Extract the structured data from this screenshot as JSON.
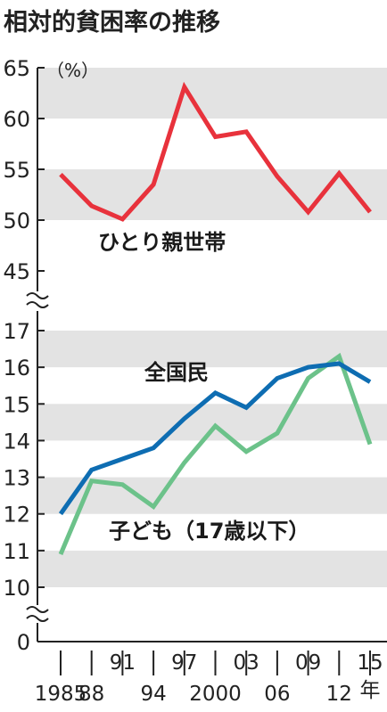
{
  "chart_data": {
    "type": "line",
    "title": "相対的貧困率の推移",
    "unit": "（%）",
    "x": [
      1985,
      1988,
      1991,
      1994,
      1997,
      2000,
      2003,
      2006,
      2009,
      2012,
      2015
    ],
    "x_tick_labels": {
      "upper": [
        "",
        "",
        "91",
        "",
        "97",
        "",
        "03",
        "",
        "09",
        "",
        "15"
      ],
      "lower": [
        "1985",
        "88",
        "",
        "94",
        "",
        "2000",
        "",
        "06",
        "",
        "12",
        ""
      ],
      "year_suffix": "年"
    },
    "upper_panel": {
      "ylim": [
        45,
        65
      ],
      "yticks": [
        "65",
        "60",
        "55",
        "50",
        "45"
      ],
      "series": [
        {
          "name": "ひとり親世帯",
          "color": "#e8323c",
          "values": [
            54.5,
            51.4,
            50.1,
            53.5,
            63.1,
            58.2,
            58.7,
            54.3,
            50.8,
            54.6,
            50.8
          ]
        }
      ]
    },
    "lower_panel": {
      "ylim": [
        10,
        17
      ],
      "yticks": [
        "17",
        "16",
        "15",
        "14",
        "13",
        "12",
        "11",
        "10"
      ],
      "series": [
        {
          "name": "全国民",
          "color": "#0e6db2",
          "values": [
            12.0,
            13.2,
            13.5,
            13.8,
            14.6,
            15.3,
            14.9,
            15.7,
            16.0,
            16.1,
            15.6
          ]
        },
        {
          "name": "子ども（17歳以下）",
          "color": "#6cc28a",
          "values": [
            10.9,
            12.9,
            12.8,
            12.2,
            13.4,
            14.4,
            13.7,
            14.2,
            15.7,
            16.3,
            13.9
          ]
        }
      ]
    },
    "zero_label": "0",
    "grid": "alternating horizontal bands"
  }
}
